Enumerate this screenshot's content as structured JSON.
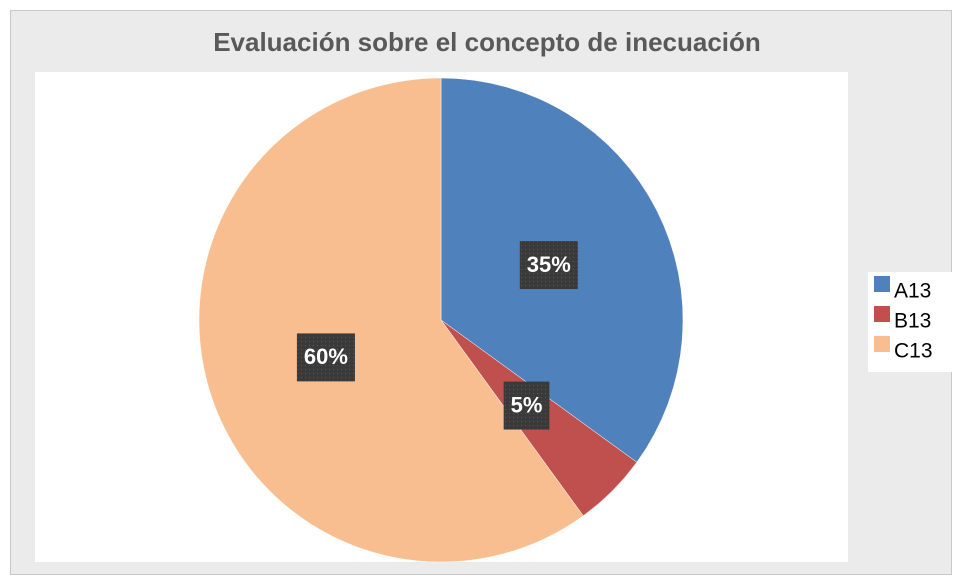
{
  "chart_data": {
    "type": "pie",
    "title": "Evaluación sobre el concepto de inecuación",
    "categories": [
      "A13",
      "B13",
      "C13"
    ],
    "values": [
      35,
      5,
      60
    ],
    "value_labels": [
      "35%",
      "5%",
      "60%"
    ],
    "colors": [
      "#4f81bd",
      "#c0504d",
      "#f9be8f"
    ],
    "legend": "right"
  }
}
